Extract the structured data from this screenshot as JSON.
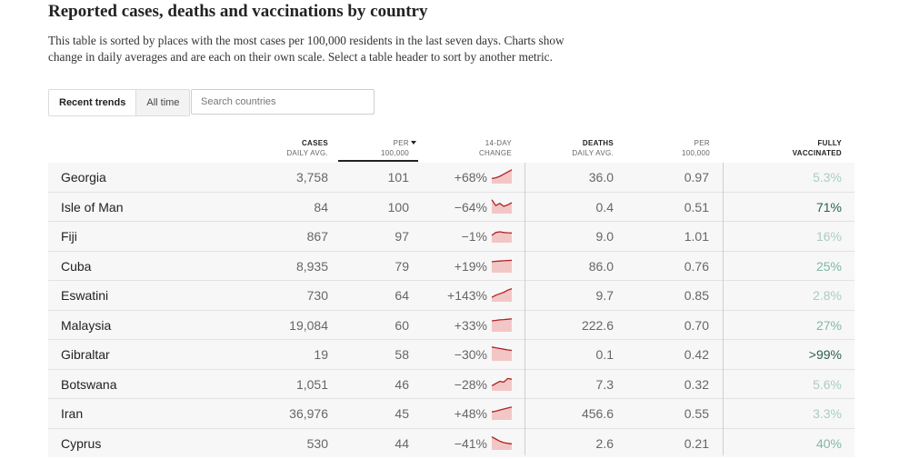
{
  "title": "Reported cases, deaths and vaccinations by country",
  "description": "This table is sorted by places with the most cases per 100,000 residents in the last seven days. Charts show change in daily averages and are each on their own scale. Select a table header to sort by another metric.",
  "toggle": {
    "recent": "Recent trends",
    "all_time": "All time"
  },
  "search": {
    "placeholder": "Search countries"
  },
  "headers": {
    "cases_1": "CASES",
    "cases_2": "DAILY AVG.",
    "per_1": "PER",
    "per_2": "100,000",
    "change_1": "14-DAY",
    "change_2": "CHANGE",
    "deaths_1": "DEATHS",
    "deaths_2": "DAILY AVG.",
    "dper_1": "PER",
    "dper_2": "100,000",
    "vax_1": "FULLY",
    "vax_2": "VACCINATED"
  },
  "colors": {
    "spark_fill": "#f3c6c6",
    "spark_line": "#b22222",
    "vax_low": "#a9cdbf",
    "vax_mid": "#7fb8a4",
    "vax_high": "#2b5f4c"
  },
  "rows": [
    {
      "country": "Georgia",
      "cases": "3,758",
      "per": "101",
      "change": "+68%",
      "deaths": "36.0",
      "dper": "0.97",
      "vax": "5.3%",
      "vax_level": 0.053,
      "trend": [
        0.35,
        0.4,
        0.5,
        0.65,
        0.8,
        0.95
      ]
    },
    {
      "country": "Isle of Man",
      "cases": "84",
      "per": "100",
      "change": "−64%",
      "deaths": "0.4",
      "dper": "0.51",
      "vax": "71%",
      "vax_level": 0.71,
      "trend": [
        0.95,
        0.55,
        0.7,
        0.5,
        0.6,
        0.75
      ]
    },
    {
      "country": "Fiji",
      "cases": "867",
      "per": "97",
      "change": "−1%",
      "deaths": "9.0",
      "dper": "1.01",
      "vax": "16%",
      "vax_level": 0.16,
      "trend": [
        0.5,
        0.7,
        0.75,
        0.7,
        0.68,
        0.67
      ]
    },
    {
      "country": "Cuba",
      "cases": "8,935",
      "per": "79",
      "change": "+19%",
      "deaths": "86.0",
      "dper": "0.76",
      "vax": "25%",
      "vax_level": 0.25,
      "trend": [
        0.75,
        0.78,
        0.8,
        0.82,
        0.84,
        0.85
      ]
    },
    {
      "country": "Eswatini",
      "cases": "730",
      "per": "64",
      "change": "+143%",
      "deaths": "9.7",
      "dper": "0.85",
      "vax": "2.8%",
      "vax_level": 0.028,
      "trend": [
        0.3,
        0.45,
        0.55,
        0.65,
        0.8,
        0.9
      ]
    },
    {
      "country": "Malaysia",
      "cases": "19,084",
      "per": "60",
      "change": "+33%",
      "deaths": "222.6",
      "dper": "0.70",
      "vax": "27%",
      "vax_level": 0.27,
      "trend": [
        0.75,
        0.78,
        0.82,
        0.84,
        0.86,
        0.88
      ]
    },
    {
      "country": "Gibraltar",
      "cases": "19",
      "per": "58",
      "change": "−30%",
      "deaths": "0.1",
      "dper": "0.42",
      "vax": ">99%",
      "vax_level": 0.99,
      "trend": [
        0.95,
        0.9,
        0.85,
        0.8,
        0.75,
        0.72
      ]
    },
    {
      "country": "Botswana",
      "cases": "1,051",
      "per": "46",
      "change": "−28%",
      "deaths": "7.3",
      "dper": "0.32",
      "vax": "5.6%",
      "vax_level": 0.056,
      "trend": [
        0.35,
        0.5,
        0.65,
        0.6,
        0.85,
        0.8
      ]
    },
    {
      "country": "Iran",
      "cases": "36,976",
      "per": "45",
      "change": "+48%",
      "deaths": "456.6",
      "dper": "0.55",
      "vax": "3.3%",
      "vax_level": 0.033,
      "trend": [
        0.55,
        0.6,
        0.68,
        0.75,
        0.82,
        0.88
      ]
    },
    {
      "country": "Cyprus",
      "cases": "530",
      "per": "44",
      "change": "−41%",
      "deaths": "2.6",
      "dper": "0.21",
      "vax": "40%",
      "vax_level": 0.4,
      "trend": [
        0.9,
        0.75,
        0.6,
        0.5,
        0.45,
        0.42
      ]
    }
  ]
}
